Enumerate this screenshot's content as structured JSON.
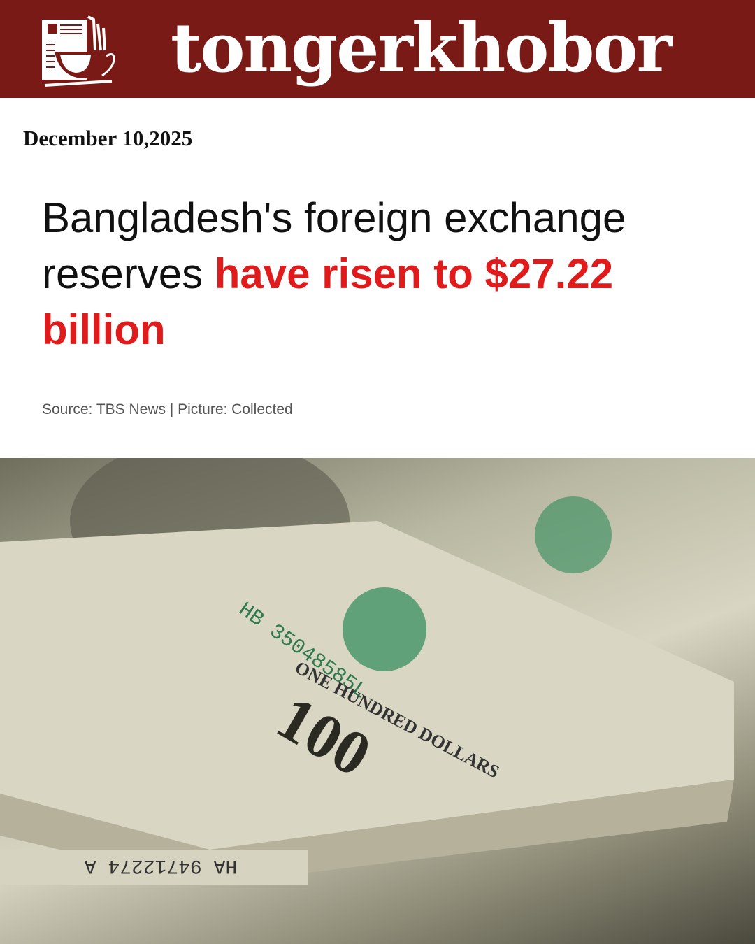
{
  "header": {
    "brand": "tongerkhobor",
    "logo_icon": "newspaper-coffee-cup-icon",
    "background": "#7a1a17"
  },
  "article": {
    "date": "December 10,2025",
    "headline_plain": "Bangladesh's foreign exchange reserves ",
    "headline_highlight": "have risen to $27.22 billion",
    "highlight_color": "#e01b1b",
    "source": "Source: TBS News | Picture: Collected"
  },
  "photo": {
    "serial_1": "HB 35048585L",
    "serial_2": "HA 94712274 A",
    "denomination": "100",
    "bill_text": "ONE HUNDRED DOLLARS"
  }
}
